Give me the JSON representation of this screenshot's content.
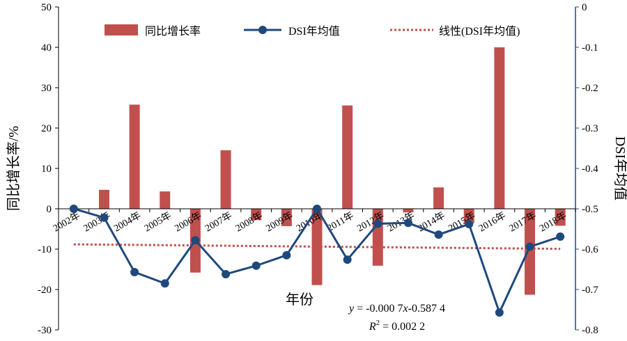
{
  "chart_data": {
    "type": "bar+line",
    "categories": [
      "2002年",
      "2003年",
      "2004年",
      "2005年",
      "2006年",
      "2007年",
      "2008年",
      "2009年",
      "2010年",
      "2011年",
      "2012年",
      "2013年",
      "2014年",
      "2015年",
      "2016年",
      "2017年",
      "2018年"
    ],
    "bar_series": {
      "name": "同比增长率",
      "axis": "left",
      "color": "#c0504d",
      "values": [
        null,
        4.7,
        25.8,
        4.3,
        -15.8,
        14.5,
        -2.8,
        -4.3,
        -18.9,
        25.6,
        -14.1,
        -0.9,
        5.3,
        -3.6,
        40.0,
        -21.3,
        -4.2
      ]
    },
    "line_series": {
      "name": "DSI年均值",
      "axis": "right",
      "color": "#1f497d",
      "values": [
        -0.5,
        -0.522,
        -0.657,
        -0.685,
        -0.578,
        -0.662,
        -0.641,
        -0.615,
        -0.5,
        -0.626,
        -0.537,
        -0.535,
        -0.564,
        -0.538,
        -0.757,
        -0.594,
        -0.569
      ]
    },
    "trend_series": {
      "name": "线性(DSI年均值)",
      "color": "#c0504d",
      "slope": -0.0007,
      "intercept": -0.5874
    },
    "yleft": {
      "label": "同比增长率/%",
      "range": [
        -30,
        50
      ],
      "ticks": [
        50,
        40,
        30,
        20,
        10,
        0,
        -10,
        -20,
        -30
      ]
    },
    "yright": {
      "label": "DSI年均值",
      "range": [
        -0.8,
        0
      ],
      "ticks": [
        "0",
        "-0.1",
        "-0.2",
        "-0.3",
        "-0.4",
        "-0.5",
        "-0.6",
        "-0.7",
        "-0.8"
      ]
    },
    "xlabel": "年份",
    "equation": {
      "line1": {
        "y": "y",
        "eq": " = -0.000 7",
        "x": "x",
        "rest": "-0.587 4"
      },
      "line2": {
        "r": "R",
        "sup": "2",
        "rest": " = 0.002 2"
      }
    },
    "legend_position": "top",
    "grid": false
  }
}
